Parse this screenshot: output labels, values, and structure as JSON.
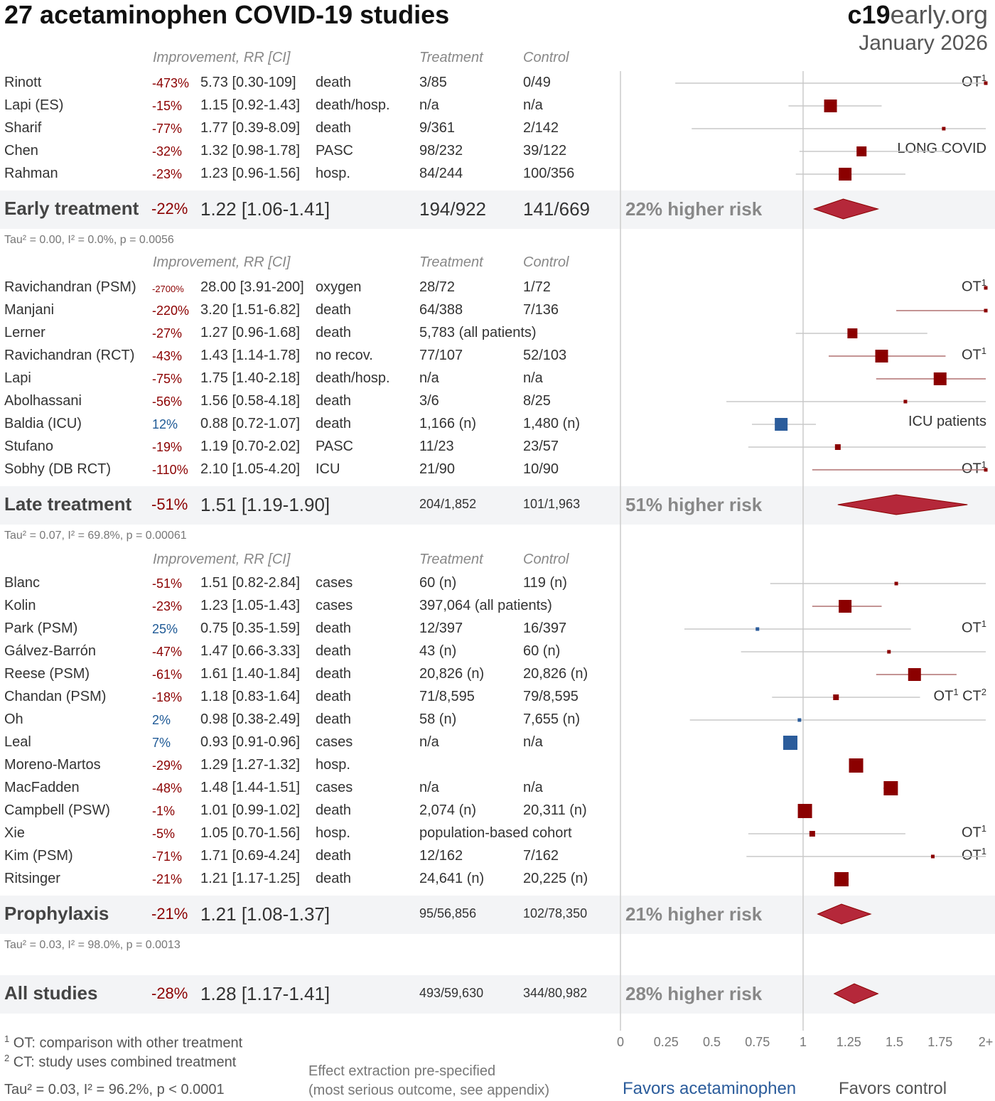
{
  "title": "27 acetaminophen COVID-19 studies",
  "brand": {
    "bold": "c19",
    "rest": "early.org"
  },
  "date": "January 2026",
  "headers": {
    "improvement": "Improvement, RR [CI]",
    "treatment": "Treatment",
    "control": "Control"
  },
  "colors": {
    "harm": "#8b0000",
    "benefit": "#2b5c9b",
    "diamond": "#b5283a"
  },
  "chart_data": {
    "type": "forest",
    "x_ticks": [
      "0",
      "0.25",
      "0.5",
      "0.75",
      "1",
      "1.25",
      "1.5",
      "1.75",
      "2+"
    ],
    "xlim": [
      0,
      2
    ],
    "groups": [
      {
        "name": "Early treatment",
        "summary": {
          "imp": "-22%",
          "val": "1.22 [1.06-1.41]",
          "rr": 1.22,
          "lo": 1.06,
          "hi": 1.41,
          "t": "194/922",
          "c": "141/669",
          "risk": "22% higher risk"
        },
        "stats": "Tau² = 0.00, I² = 0.0%, p = 0.0056",
        "studies": [
          {
            "name": "Rinott",
            "imp": "-473%",
            "val": "5.73 [0.30-109]",
            "out": "death",
            "t": "3/85",
            "c": "0/49",
            "rr": 5.73,
            "lo": 0.3,
            "hi": 109,
            "note": "OT",
            "sup": "1",
            "w": 1
          },
          {
            "name": "Lapi (ES)",
            "imp": "-15%",
            "val": "1.15 [0.92-1.43]",
            "out": "death/hosp.",
            "t": "n/a",
            "c": "n/a",
            "rr": 1.15,
            "lo": 0.92,
            "hi": 1.43,
            "note": "",
            "sup": "",
            "w": 5
          },
          {
            "name": "Sharif",
            "imp": "-77%",
            "val": "1.77 [0.39-8.09]",
            "out": "death",
            "t": "9/361",
            "c": "2/142",
            "rr": 1.77,
            "lo": 0.39,
            "hi": 8.09,
            "note": "",
            "sup": "",
            "w": 1
          },
          {
            "name": "Chen",
            "imp": "-32%",
            "val": "1.32 [0.98-1.78]",
            "out": "PASC",
            "t": "98/232",
            "c": "39/122",
            "rr": 1.32,
            "lo": 0.98,
            "hi": 1.78,
            "note": "LONG COVID",
            "sup": "",
            "w": 4
          },
          {
            "name": "Rahman",
            "imp": "-23%",
            "val": "1.23 [0.96-1.56]",
            "out": "hosp.",
            "t": "84/244",
            "c": "100/356",
            "rr": 1.23,
            "lo": 0.96,
            "hi": 1.56,
            "note": "",
            "sup": "",
            "w": 5
          }
        ]
      },
      {
        "name": "Late treatment",
        "summary": {
          "imp": "-51%",
          "val": "1.51 [1.19-1.90]",
          "rr": 1.51,
          "lo": 1.19,
          "hi": 1.9,
          "t": "204/1,852",
          "c": "101/1,963",
          "risk": "51% higher risk"
        },
        "stats": "Tau² = 0.07, I² = 69.8%, p = 0.00061",
        "studies": [
          {
            "name": "Ravichandran (PSM)",
            "imp": "-2700%",
            "val": "28.00 [3.91-200]",
            "out": "oxygen",
            "t": "28/72",
            "c": "1/72",
            "rr": 28.0,
            "lo": 3.91,
            "hi": 200,
            "note": "OT",
            "sup": "1",
            "w": 1
          },
          {
            "name": "Manjani",
            "imp": "-220%",
            "val": "3.20 [1.51-6.82]",
            "out": "death",
            "t": "64/388",
            "c": "7/136",
            "rr": 3.2,
            "lo": 1.51,
            "hi": 6.82,
            "note": "",
            "sup": "",
            "w": 1
          },
          {
            "name": "Lerner",
            "imp": "-27%",
            "val": "1.27 [0.96-1.68]",
            "out": "death",
            "t": "5,783 (all patients)",
            "c": "",
            "rr": 1.27,
            "lo": 0.96,
            "hi": 1.68,
            "note": "",
            "sup": "",
            "w": 4
          },
          {
            "name": "Ravichandran (RCT)",
            "imp": "-43%",
            "val": "1.43 [1.14-1.78]",
            "out": "no recov.",
            "t": "77/107",
            "c": "52/103",
            "rr": 1.43,
            "lo": 1.14,
            "hi": 1.78,
            "note": "OT",
            "sup": "1",
            "w": 5
          },
          {
            "name": "Lapi",
            "imp": "-75%",
            "val": "1.75 [1.40-2.18]",
            "out": "death/hosp.",
            "t": "n/a",
            "c": "n/a",
            "rr": 1.75,
            "lo": 1.4,
            "hi": 2.18,
            "note": "",
            "sup": "",
            "w": 5
          },
          {
            "name": "Abolhassani",
            "imp": "-56%",
            "val": "1.56 [0.58-4.18]",
            "out": "death",
            "t": "3/6",
            "c": "8/25",
            "rr": 1.56,
            "lo": 0.58,
            "hi": 4.18,
            "note": "",
            "sup": "",
            "w": 1
          },
          {
            "name": "Baldia (ICU)",
            "imp": "12%",
            "val": "0.88 [0.72-1.07]",
            "out": "death",
            "t": "1,166 (n)",
            "c": "1,480 (n)",
            "rr": 0.88,
            "lo": 0.72,
            "hi": 1.07,
            "note": "ICU patients",
            "sup": "",
            "w": 5
          },
          {
            "name": "Stufano",
            "imp": "-19%",
            "val": "1.19 [0.70-2.02]",
            "out": "PASC",
            "t": "11/23",
            "c": "23/57",
            "rr": 1.19,
            "lo": 0.7,
            "hi": 2.02,
            "note": "",
            "sup": "",
            "w": 2
          },
          {
            "name": "Sobhy (DB RCT)",
            "imp": "-110%",
            "val": "2.10 [1.05-4.20]",
            "out": "ICU",
            "t": "21/90",
            "c": "10/90",
            "rr": 2.1,
            "lo": 1.05,
            "hi": 4.2,
            "note": "OT",
            "sup": "1",
            "w": 1
          }
        ]
      },
      {
        "name": "Prophylaxis",
        "summary": {
          "imp": "-21%",
          "val": "1.21 [1.08-1.37]",
          "rr": 1.21,
          "lo": 1.08,
          "hi": 1.37,
          "t": "95/56,856",
          "c": "102/78,350",
          "risk": "21% higher risk"
        },
        "stats": "Tau² = 0.03, I² = 98.0%, p = 0.0013",
        "studies": [
          {
            "name": "Blanc",
            "imp": "-51%",
            "val": "1.51 [0.82-2.84]",
            "out": "cases",
            "t": "60 (n)",
            "c": "119 (n)",
            "rr": 1.51,
            "lo": 0.82,
            "hi": 2.84,
            "note": "",
            "sup": "",
            "w": 1
          },
          {
            "name": "Kolin",
            "imp": "-23%",
            "val": "1.23 [1.05-1.43]",
            "out": "cases",
            "t": "397,064 (all patients)",
            "c": "",
            "rr": 1.23,
            "lo": 1.05,
            "hi": 1.43,
            "note": "",
            "sup": "",
            "w": 5
          },
          {
            "name": "Park (PSM)",
            "imp": "25%",
            "val": "0.75 [0.35-1.59]",
            "out": "death",
            "t": "12/397",
            "c": "16/397",
            "rr": 0.75,
            "lo": 0.35,
            "hi": 1.59,
            "note": "OT",
            "sup": "1",
            "w": 1
          },
          {
            "name": "Gálvez-Barrón",
            "imp": "-47%",
            "val": "1.47 [0.66-3.33]",
            "out": "death",
            "t": "43 (n)",
            "c": "60 (n)",
            "rr": 1.47,
            "lo": 0.66,
            "hi": 3.33,
            "note": "",
            "sup": "",
            "w": 1
          },
          {
            "name": "Reese (PSM)",
            "imp": "-61%",
            "val": "1.61 [1.40-1.84]",
            "out": "death",
            "t": "20,826 (n)",
            "c": "20,826 (n)",
            "rr": 1.61,
            "lo": 1.4,
            "hi": 1.84,
            "note": "",
            "sup": "",
            "w": 5
          },
          {
            "name": "Chandan (PSM)",
            "imp": "-18%",
            "val": "1.18 [0.83-1.64]",
            "out": "death",
            "t": "71/8,595",
            "c": "79/8,595",
            "rr": 1.18,
            "lo": 0.83,
            "hi": 1.64,
            "note": "OT",
            "sup": "1",
            "note2": "CT",
            "sup2": "2",
            "w": 2
          },
          {
            "name": "Oh",
            "imp": "2%",
            "val": "0.98 [0.38-2.49]",
            "out": "death",
            "t": "58 (n)",
            "c": "7,655 (n)",
            "rr": 0.98,
            "lo": 0.38,
            "hi": 2.49,
            "note": "",
            "sup": "",
            "w": 1
          },
          {
            "name": "Leal",
            "imp": "7%",
            "val": "0.93 [0.91-0.96]",
            "out": "cases",
            "t": "n/a",
            "c": "n/a",
            "rr": 0.93,
            "lo": 0.91,
            "hi": 0.96,
            "note": "",
            "sup": "",
            "w": 6
          },
          {
            "name": "Moreno-Martos",
            "imp": "-29%",
            "val": "1.29 [1.27-1.32]",
            "out": "hosp.",
            "t": "",
            "c": "",
            "rr": 1.29,
            "lo": 1.27,
            "hi": 1.32,
            "note": "",
            "sup": "",
            "w": 6
          },
          {
            "name": "MacFadden",
            "imp": "-48%",
            "val": "1.48 [1.44-1.51]",
            "out": "cases",
            "t": "n/a",
            "c": "n/a",
            "rr": 1.48,
            "lo": 1.44,
            "hi": 1.51,
            "note": "",
            "sup": "",
            "w": 6
          },
          {
            "name": "Campbell (PSW)",
            "imp": "-1%",
            "val": "1.01 [0.99-1.02]",
            "out": "death",
            "t": "2,074 (n)",
            "c": "20,311 (n)",
            "rr": 1.01,
            "lo": 0.99,
            "hi": 1.02,
            "note": "",
            "sup": "",
            "w": 6
          },
          {
            "name": "Xie",
            "imp": "-5%",
            "val": "1.05 [0.70-1.56]",
            "out": "hosp.",
            "t": "population-based cohort",
            "c": "",
            "rr": 1.05,
            "lo": 0.7,
            "hi": 1.56,
            "note": "OT",
            "sup": "1",
            "w": 2
          },
          {
            "name": "Kim (PSM)",
            "imp": "-71%",
            "val": "1.71 [0.69-4.24]",
            "out": "death",
            "t": "12/162",
            "c": "7/162",
            "rr": 1.71,
            "lo": 0.69,
            "hi": 4.24,
            "note": "OT",
            "sup": "1",
            "w": 1
          },
          {
            "name": "Ritsinger",
            "imp": "-21%",
            "val": "1.21 [1.17-1.25]",
            "out": "death",
            "t": "24,641 (n)",
            "c": "20,225 (n)",
            "rr": 1.21,
            "lo": 1.17,
            "hi": 1.25,
            "note": "",
            "sup": "",
            "w": 6
          }
        ]
      }
    ],
    "overall": {
      "name": "All studies",
      "imp": "-28%",
      "val": "1.28 [1.17-1.41]",
      "rr": 1.28,
      "lo": 1.17,
      "hi": 1.41,
      "t": "493/59,630",
      "c": "344/80,982",
      "risk": "28% higher risk"
    }
  },
  "footnotes": {
    "f1_sup": "1",
    "f1": "OT: comparison with other treatment",
    "f2_sup": "2",
    "f2": "CT: study uses combined treatment",
    "overall_stats": "Tau² = 0.03, I² = 96.2%, p < 0.0001",
    "extraction_1": "Effect extraction pre-specified",
    "extraction_2": "(most serious outcome, see appendix)",
    "favors_left": "Favors acetaminophen",
    "favors_right": "Favors control"
  }
}
